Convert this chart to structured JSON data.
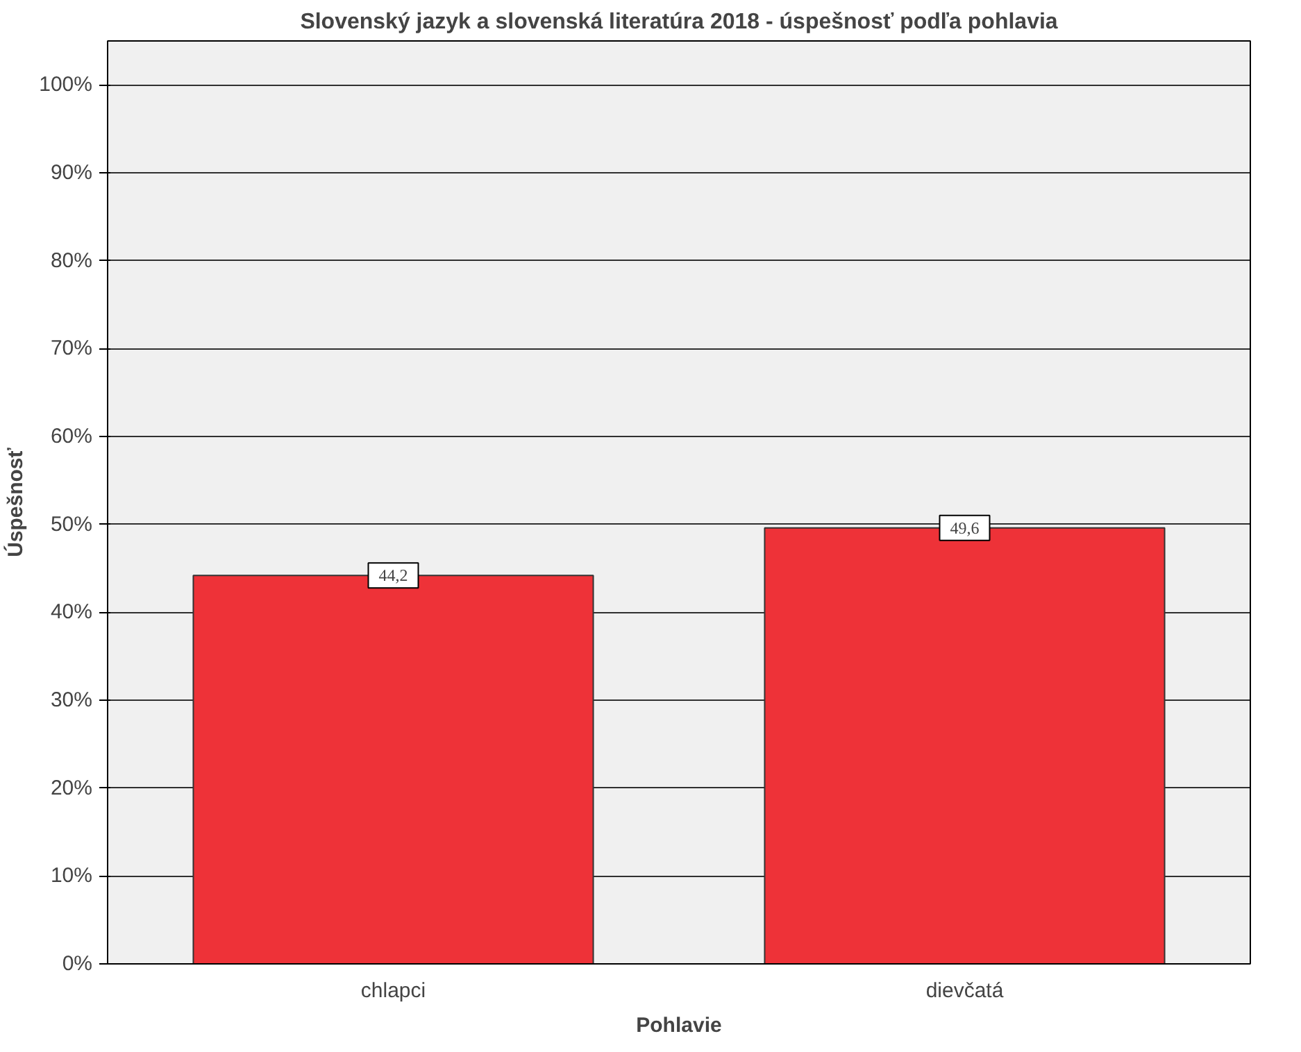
{
  "chart_data": {
    "type": "bar",
    "title": "Slovenský jazyk a slovenská literatúra 2018 - úspešnosť podľa pohlavia",
    "xlabel": "Pohlavie",
    "ylabel": "Úspešnosť",
    "categories": [
      "chlapci",
      "dievčatá"
    ],
    "values": [
      44.2,
      49.6
    ],
    "value_labels": [
      "44,2",
      "49,6"
    ],
    "color": "#ee3238",
    "ylim": [
      0,
      105
    ],
    "yticks": [
      {
        "value": 0,
        "label": "0%"
      },
      {
        "value": 10,
        "label": "10%"
      },
      {
        "value": 20,
        "label": "20%"
      },
      {
        "value": 30,
        "label": "30%"
      },
      {
        "value": 40,
        "label": "40%"
      },
      {
        "value": 50,
        "label": "50%"
      },
      {
        "value": 60,
        "label": "60%"
      },
      {
        "value": 70,
        "label": "70%"
      },
      {
        "value": 80,
        "label": "80%"
      },
      {
        "value": 90,
        "label": "90%"
      },
      {
        "value": 100,
        "label": "100%"
      }
    ],
    "grid": "y"
  }
}
